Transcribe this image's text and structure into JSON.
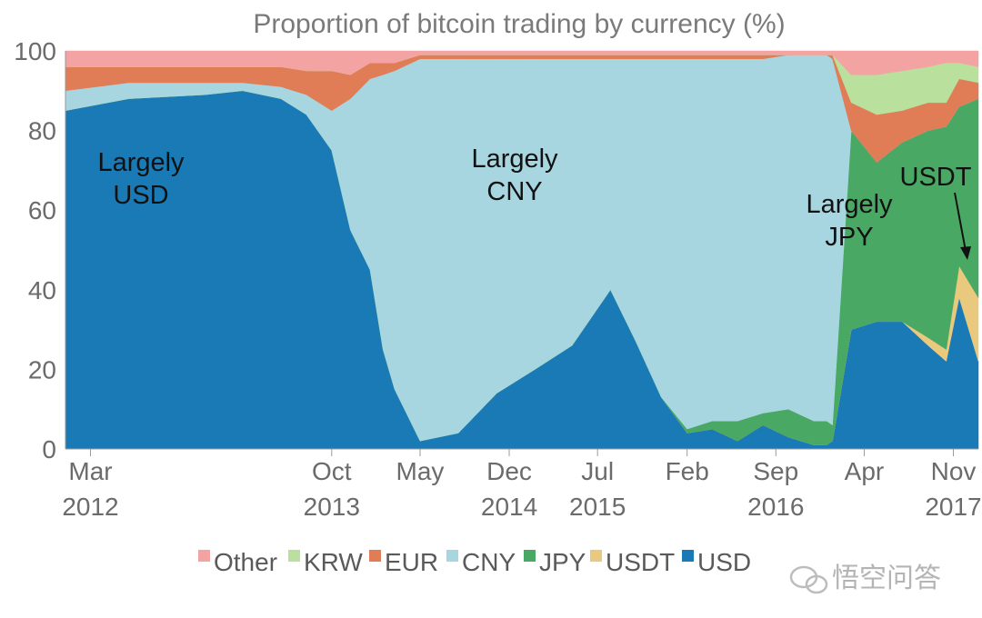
{
  "chart_data": {
    "type": "area",
    "stacked": true,
    "normalized_percent": true,
    "title": "Proportion of bitcoin trading by currency (%)",
    "ylim": [
      0,
      100
    ],
    "yticks": [
      0,
      20,
      40,
      60,
      80,
      100
    ],
    "xlim": [
      "2012-01-01",
      "2017-12-31"
    ],
    "x_ticks": [
      {
        "date": "2012-03-01",
        "month": "Mar",
        "year": "2012"
      },
      {
        "date": "2013-10-01",
        "month": "Oct",
        "year": "2013"
      },
      {
        "date": "2014-05-01",
        "month": "May",
        "year": ""
      },
      {
        "date": "2014-12-01",
        "month": "Dec",
        "year": "2014"
      },
      {
        "date": "2015-07-01",
        "month": "Jul",
        "year": "2015"
      },
      {
        "date": "2016-02-01",
        "month": "Feb",
        "year": ""
      },
      {
        "date": "2016-09-01",
        "month": "Sep",
        "year": "2016"
      },
      {
        "date": "2017-04-01",
        "month": "Apr",
        "year": ""
      },
      {
        "date": "2017-11-01",
        "month": "Nov",
        "year": "2017"
      }
    ],
    "x": [
      "2012-01-01",
      "2012-06-01",
      "2012-12-01",
      "2013-03-01",
      "2013-06-01",
      "2013-08-01",
      "2013-10-01",
      "2013-11-15",
      "2014-01-01",
      "2014-02-01",
      "2014-03-01",
      "2014-05-01",
      "2014-08-01",
      "2014-11-01",
      "2015-02-01",
      "2015-05-01",
      "2015-08-01",
      "2015-10-01",
      "2015-12-01",
      "2016-02-01",
      "2016-04-01",
      "2016-06-01",
      "2016-08-01",
      "2016-10-01",
      "2016-12-01",
      "2017-01-01",
      "2017-01-15",
      "2017-03-01",
      "2017-05-01",
      "2017-07-01",
      "2017-09-01",
      "2017-10-15",
      "2017-11-15",
      "2017-12-31"
    ],
    "series": [
      {
        "name": "USD",
        "color": "#1a7ab5",
        "values": [
          85,
          88,
          89,
          90,
          88,
          84,
          75,
          55,
          45,
          25,
          15,
          2,
          4,
          14,
          20,
          26,
          40,
          27,
          13,
          4,
          5,
          2,
          6,
          3,
          1,
          1,
          2,
          30,
          32,
          32,
          26,
          22,
          38,
          22
        ]
      },
      {
        "name": "USDT",
        "color": "#e8c97e",
        "values": [
          0,
          0,
          0,
          0,
          0,
          0,
          0,
          0,
          0,
          0,
          0,
          0,
          0,
          0,
          0,
          0,
          0,
          0,
          0,
          0,
          0,
          0,
          0,
          0,
          0,
          0,
          0,
          0,
          0,
          0,
          2,
          3,
          8,
          16
        ]
      },
      {
        "name": "JPY",
        "color": "#49a864",
        "values": [
          0,
          0,
          0,
          0,
          0,
          0,
          0,
          0,
          0,
          0,
          0,
          0,
          0,
          0,
          0,
          0,
          0,
          0,
          0,
          1,
          2,
          5,
          3,
          7,
          6,
          6,
          4,
          50,
          40,
          45,
          52,
          56,
          40,
          50
        ]
      },
      {
        "name": "CNY",
        "color": "#a7d6e0",
        "values": [
          5,
          4,
          3,
          2,
          3,
          5,
          10,
          33,
          48,
          69,
          80,
          96,
          94,
          84,
          78,
          72,
          58,
          71,
          85,
          93,
          91,
          91,
          89,
          89,
          92,
          92,
          92,
          0,
          0,
          0,
          0,
          0,
          0,
          0
        ]
      },
      {
        "name": "EUR",
        "color": "#e07d57",
        "values": [
          6,
          4,
          4,
          4,
          5,
          6,
          10,
          6,
          4,
          3,
          2,
          1,
          1,
          1,
          1,
          1,
          1,
          1,
          1,
          1,
          1,
          1,
          1,
          0,
          0,
          0,
          1,
          7,
          12,
          8,
          7,
          6,
          7,
          4
        ]
      },
      {
        "name": "KRW",
        "color": "#b9e09c",
        "values": [
          0,
          0,
          0,
          0,
          0,
          0,
          0,
          0,
          0,
          0,
          0,
          0,
          0,
          0,
          0,
          0,
          0,
          0,
          0,
          0,
          0,
          0,
          0,
          0,
          0,
          0,
          0,
          7,
          10,
          10,
          9,
          10,
          4,
          4
        ]
      },
      {
        "name": "Other",
        "color": "#f4a3a3",
        "values": [
          4,
          4,
          4,
          4,
          4,
          5,
          5,
          6,
          3,
          3,
          3,
          1,
          1,
          1,
          1,
          1,
          1,
          1,
          1,
          1,
          1,
          1,
          1,
          1,
          1,
          1,
          1,
          6,
          6,
          5,
          4,
          3,
          3,
          4
        ]
      }
    ],
    "legend": {
      "placement": "bottom",
      "order": [
        "Other",
        "KRW",
        "EUR",
        "CNY",
        "JPY",
        "USDT",
        "USD"
      ]
    },
    "annotations": [
      {
        "lines": [
          "Largely",
          "USD"
        ]
      },
      {
        "lines": [
          "Largely",
          "CNY"
        ]
      },
      {
        "lines": [
          "Largely",
          "JPY"
        ]
      },
      {
        "lines": [
          "USDT"
        ],
        "arrow": true
      }
    ]
  },
  "watermark": {
    "text": "悟空问答"
  }
}
